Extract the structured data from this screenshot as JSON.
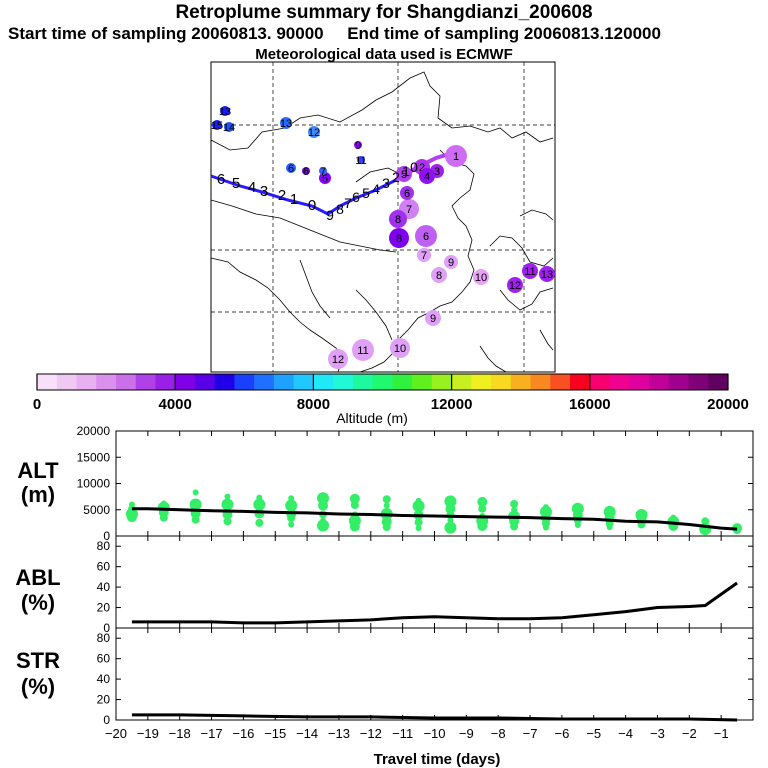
{
  "header": {
    "title": "Retroplume summary for Shangdianzi_200608",
    "sampling": "Start time of sampling 20060813. 90000     End time of sampling 20060813.120000",
    "met": "Meteorological data used is ECMWF"
  },
  "chart_data": [
    {
      "type": "map-trajectory",
      "name": "retroplume-map",
      "path_labels": [
        "6",
        "5",
        "4",
        "3",
        "2",
        "1",
        "0"
      ],
      "path_labels_right": [
        "9",
        "8",
        "7",
        "6",
        "5",
        "4",
        "3",
        "2",
        "1",
        "0"
      ],
      "cluster_labels": [
        {
          "label": "13",
          "color": "#1a1aff"
        },
        {
          "label": "15",
          "color": "#1a1aff"
        },
        {
          "label": "14",
          "color": "#2050ff"
        },
        {
          "label": "13",
          "color": "#2a6cff"
        },
        {
          "label": "12",
          "color": "#3a8dff"
        },
        {
          "label": "6",
          "color": "#2c60ff"
        },
        {
          "label": "5",
          "color": "#8a00ff"
        },
        {
          "label": "7",
          "color": "#3860ff"
        },
        {
          "label": "6",
          "color": "#7000e0"
        },
        {
          "label": "11",
          "color": "#3a3aff"
        },
        {
          "label": "9",
          "color": "#9a00ff"
        },
        {
          "label": "1",
          "color": "#cf6cf4"
        },
        {
          "label": "2",
          "color": "#b030f0"
        },
        {
          "label": "3",
          "color": "#a020f0"
        },
        {
          "label": "4",
          "color": "#9010f0"
        },
        {
          "label": "5",
          "color": "#b040f0"
        },
        {
          "label": "7",
          "color": "#d080f4"
        },
        {
          "label": "8",
          "color": "#8000ee"
        },
        {
          "label": "6",
          "color": "#a030ee"
        },
        {
          "label": "8",
          "color": "#a030ee"
        },
        {
          "label": "6",
          "color": "#c060f2"
        },
        {
          "label": "7",
          "color": "#e0a0f8"
        },
        {
          "label": "8",
          "color": "#e0a0f8"
        },
        {
          "label": "9",
          "color": "#e0a0f8"
        },
        {
          "label": "10",
          "color": "#e8a0f8"
        },
        {
          "label": "11",
          "color": "#a020f0"
        },
        {
          "label": "12",
          "color": "#a020f0"
        },
        {
          "label": "13",
          "color": "#a020f0"
        },
        {
          "label": "9",
          "color": "#e0a0f8"
        },
        {
          "label": "10",
          "color": "#e0a0f8"
        },
        {
          "label": "11",
          "color": "#e0a0f8"
        },
        {
          "label": "12",
          "color": "#e0a0f8"
        }
      ]
    },
    {
      "type": "colorbar",
      "name": "altitude-colorbar",
      "xlabel": "Altitude (m)",
      "range": [
        0,
        20000
      ],
      "ticks": [
        0,
        4000,
        8000,
        12000,
        16000,
        20000
      ],
      "colors": [
        "#f8e0f8",
        "#f0c8f4",
        "#e8b0f0",
        "#dc90ee",
        "#cc70ea",
        "#b040e8",
        "#9a20e8",
        "#8000e8",
        "#5a00e8",
        "#2000e8",
        "#1a40ff",
        "#2070ff",
        "#20a0ff",
        "#20c8ff",
        "#20e8f8",
        "#20f8d8",
        "#20f8a0",
        "#20f870",
        "#30f040",
        "#60f020",
        "#98f020",
        "#c8f020",
        "#f0f020",
        "#f8d820",
        "#f8b020",
        "#f88820",
        "#f85020",
        "#f80020",
        "#f80070",
        "#f00090",
        "#e000a0",
        "#c00098",
        "#a00090",
        "#800078",
        "#600060"
      ]
    },
    {
      "type": "line-scatter",
      "name": "alt-panel",
      "ylabel": "ALT (m)",
      "ylim": [
        0,
        20000
      ],
      "yticks": [
        0,
        5000,
        10000,
        15000,
        20000
      ],
      "x": [
        -19.5,
        -19,
        -18,
        -17,
        -16,
        -15,
        -14,
        -13,
        -12,
        -11,
        -10,
        -9,
        -8,
        -7,
        -6,
        -5,
        -4,
        -3,
        -2,
        -1,
        -0.5
      ],
      "line": [
        5200,
        5200,
        5000,
        4800,
        4700,
        4500,
        4400,
        4200,
        4100,
        3900,
        3800,
        3700,
        3600,
        3500,
        3300,
        3200,
        2800,
        2700,
        2200,
        1500,
        1300
      ],
      "points": [
        {
          "x": -19.5,
          "y": 6000
        },
        {
          "x": -19.5,
          "y": 4200
        },
        {
          "x": -19.5,
          "y": 3600
        },
        {
          "x": -19.5,
          "y": 5100
        },
        {
          "x": -18.5,
          "y": 6200
        },
        {
          "x": -18.5,
          "y": 5400
        },
        {
          "x": -18.5,
          "y": 4500
        },
        {
          "x": -18.5,
          "y": 3500
        },
        {
          "x": -17.5,
          "y": 8300
        },
        {
          "x": -17.5,
          "y": 6000
        },
        {
          "x": -17.5,
          "y": 4300
        },
        {
          "x": -17.5,
          "y": 3100
        },
        {
          "x": -16.5,
          "y": 7500
        },
        {
          "x": -16.5,
          "y": 6000
        },
        {
          "x": -16.5,
          "y": 4100
        },
        {
          "x": -16.5,
          "y": 2800
        },
        {
          "x": -15.5,
          "y": 7300
        },
        {
          "x": -15.5,
          "y": 6000
        },
        {
          "x": -15.5,
          "y": 4300
        },
        {
          "x": -15.5,
          "y": 2500
        },
        {
          "x": -14.5,
          "y": 7200
        },
        {
          "x": -14.5,
          "y": 5800
        },
        {
          "x": -14.5,
          "y": 4200
        },
        {
          "x": -14.5,
          "y": 3400
        },
        {
          "x": -14.5,
          "y": 2200
        },
        {
          "x": -13.5,
          "y": 7200
        },
        {
          "x": -13.5,
          "y": 5800
        },
        {
          "x": -13.5,
          "y": 4100
        },
        {
          "x": -13.5,
          "y": 2900
        },
        {
          "x": -13.5,
          "y": 2000
        },
        {
          "x": -12.5,
          "y": 7100
        },
        {
          "x": -12.5,
          "y": 5900
        },
        {
          "x": -12.5,
          "y": 4100
        },
        {
          "x": -12.5,
          "y": 2900
        },
        {
          "x": -12.5,
          "y": 1800
        },
        {
          "x": -11.5,
          "y": 7000
        },
        {
          "x": -11.5,
          "y": 5800
        },
        {
          "x": -11.5,
          "y": 4200
        },
        {
          "x": -11.5,
          "y": 2700
        },
        {
          "x": -11.5,
          "y": 1700
        },
        {
          "x": -10.5,
          "y": 6700
        },
        {
          "x": -10.5,
          "y": 5700
        },
        {
          "x": -10.5,
          "y": 4000
        },
        {
          "x": -10.5,
          "y": 2600
        },
        {
          "x": -10.5,
          "y": 1500
        },
        {
          "x": -9.5,
          "y": 6600
        },
        {
          "x": -9.5,
          "y": 5200
        },
        {
          "x": -9.5,
          "y": 4000
        },
        {
          "x": -9.5,
          "y": 3000
        },
        {
          "x": -9.5,
          "y": 1600
        },
        {
          "x": -8.5,
          "y": 6500
        },
        {
          "x": -8.5,
          "y": 5200
        },
        {
          "x": -8.5,
          "y": 3800
        },
        {
          "x": -8.5,
          "y": 2900
        },
        {
          "x": -8.5,
          "y": 1900
        },
        {
          "x": -7.5,
          "y": 6100
        },
        {
          "x": -7.5,
          "y": 5000
        },
        {
          "x": -7.5,
          "y": 3700
        },
        {
          "x": -7.5,
          "y": 2800
        },
        {
          "x": -7.5,
          "y": 1800
        },
        {
          "x": -6.5,
          "y": 5500
        },
        {
          "x": -6.5,
          "y": 4600
        },
        {
          "x": -6.5,
          "y": 3400
        },
        {
          "x": -6.5,
          "y": 2400
        },
        {
          "x": -6.5,
          "y": 1600
        },
        {
          "x": -5.5,
          "y": 5200
        },
        {
          "x": -5.5,
          "y": 4000
        },
        {
          "x": -5.5,
          "y": 3000
        },
        {
          "x": -5.5,
          "y": 2100
        },
        {
          "x": -4.5,
          "y": 4600
        },
        {
          "x": -4.5,
          "y": 3600
        },
        {
          "x": -4.5,
          "y": 2400
        },
        {
          "x": -4.5,
          "y": 1700
        },
        {
          "x": -3.5,
          "y": 4000
        },
        {
          "x": -3.5,
          "y": 3000
        },
        {
          "x": -3.5,
          "y": 2200
        },
        {
          "x": -2.5,
          "y": 3500
        },
        {
          "x": -2.5,
          "y": 2700
        },
        {
          "x": -2.5,
          "y": 1900
        },
        {
          "x": -1.5,
          "y": 2800
        },
        {
          "x": -1.5,
          "y": 2000
        },
        {
          "x": -1.5,
          "y": 1300
        },
        {
          "x": -0.5,
          "y": 1500
        },
        {
          "x": -0.5,
          "y": 1100
        }
      ]
    },
    {
      "type": "line",
      "name": "abl-panel",
      "ylabel": "ABL (%)",
      "ylim": [
        0,
        90
      ],
      "yticks": [
        0,
        20,
        40,
        60,
        80
      ],
      "x": [
        -19.5,
        -18,
        -17,
        -16,
        -15,
        -14,
        -13,
        -12,
        -11,
        -10,
        -9,
        -8,
        -7,
        -6,
        -5,
        -4,
        -3,
        -2,
        -1.5,
        -1,
        -0.5
      ],
      "y": [
        6,
        6,
        6,
        5,
        5,
        6,
        7,
        8,
        10,
        11,
        10,
        9,
        9,
        10,
        13,
        16,
        20,
        21,
        22,
        33,
        44
      ]
    },
    {
      "type": "line",
      "name": "str-panel",
      "ylabel": "STR (%)",
      "ylim": [
        0,
        90
      ],
      "yticks": [
        0,
        20,
        40,
        60,
        80
      ],
      "xlabel": "Travel time (days)",
      "xlim": [
        -20,
        0
      ],
      "xticks": [
        -20,
        -19,
        -18,
        -17,
        -16,
        -15,
        -14,
        -13,
        -12,
        -11,
        -10,
        -9,
        -8,
        -7,
        -6,
        -5,
        -4,
        -3,
        -2,
        -1
      ],
      "x": [
        -19.5,
        -18,
        -16,
        -14,
        -12,
        -10,
        -8,
        -6,
        -4,
        -2,
        -0.5
      ],
      "y": [
        5,
        5,
        4,
        3,
        3,
        2,
        2,
        1,
        1,
        1,
        0
      ]
    }
  ]
}
